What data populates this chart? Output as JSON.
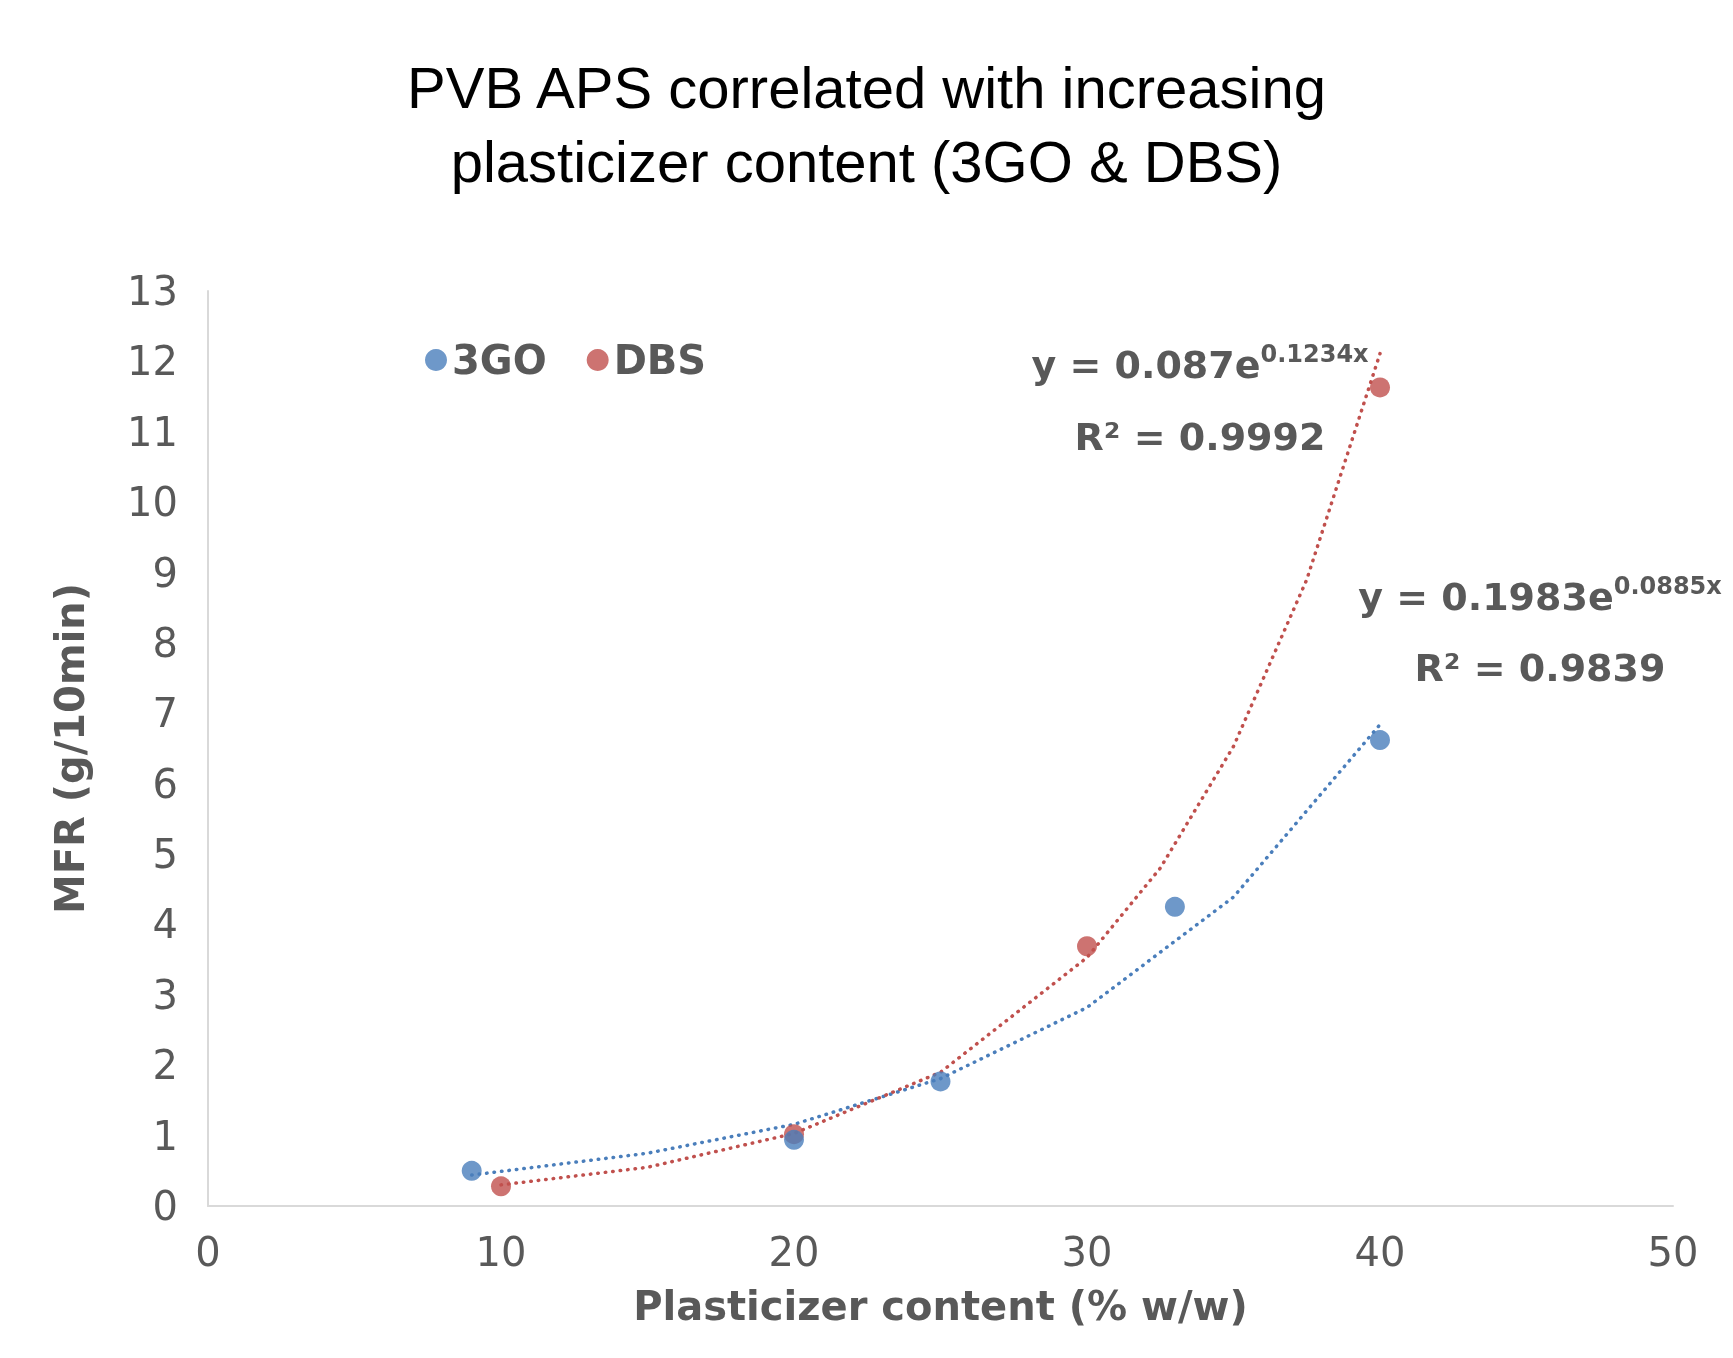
{
  "chart_data": {
    "type": "scatter",
    "title": "PVB APS correlated with increasing\nplasticizer content (3GO & DBS)",
    "xlabel": "Plasticizer content (% w/w)",
    "ylabel": "MFR (g/10min)",
    "xlim": [
      0,
      50
    ],
    "xticks": [
      0,
      10,
      20,
      30,
      40,
      50
    ],
    "ylim": [
      0,
      13
    ],
    "yticks": [
      0,
      1,
      2,
      3,
      4,
      5,
      6,
      7,
      8,
      9,
      10,
      11,
      12,
      13
    ],
    "grid": false,
    "legend": "top left",
    "marker": "circle",
    "series": [
      {
        "name": "3GO",
        "color": "#4a7ebb",
        "x": [
          9,
          20,
          25,
          33,
          40
        ],
        "values": [
          0.5,
          0.94,
          1.77,
          4.25,
          6.62
        ]
      },
      {
        "name": "DBS",
        "color": "#c0504d",
        "x": [
          10,
          20,
          30,
          40
        ],
        "values": [
          0.28,
          1.02,
          3.69,
          11.63
        ]
      },
      {
        "type": "line",
        "color": "#4a7ebb",
        "marker": "none",
        "line_style": "dotted",
        "x": [
          9,
          15,
          20,
          25,
          30,
          35,
          40
        ],
        "values": [
          0.44,
          0.75,
          1.16,
          1.81,
          2.82,
          4.39,
          6.84
        ]
      },
      {
        "type": "line",
        "color": "#c0504d",
        "marker": "none",
        "line_style": "dotted",
        "x": [
          10,
          15,
          20,
          25,
          30,
          32.5,
          35,
          37.5,
          40
        ],
        "values": [
          0.3,
          0.55,
          1.03,
          1.9,
          3.53,
          4.8,
          6.53,
          8.9,
          12.11
        ]
      }
    ],
    "annotations": [
      "y = 0.087e$^{0.1234x}$",
      "R² = 0.9992",
      "y = 0.1983e$^{0.0885x}$",
      "R² = 0.9839"
    ]
  }
}
